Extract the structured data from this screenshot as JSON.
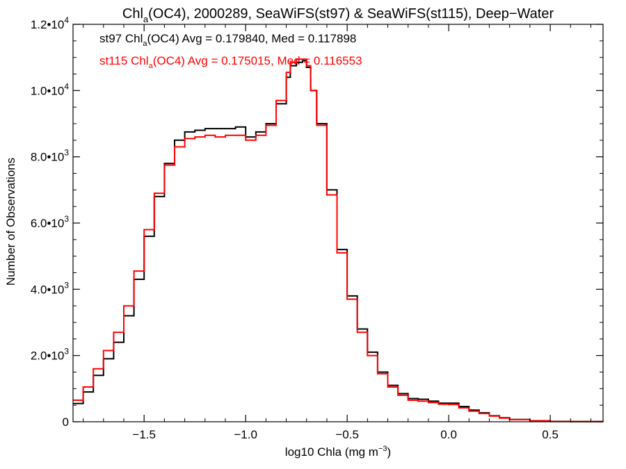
{
  "chart_data": {
    "type": "line",
    "title": {
      "pre": "Chl",
      "sub": "a",
      "post": "(OC4), 2000289, SeaWiFS(st97) & SeaWiFS(st115), Deep−Water"
    },
    "xlabel": {
      "pre": "log10 Chla (mg m",
      "sup": "−3",
      "post": ")"
    },
    "ylabel": "Number of Observations",
    "xlim": [
      -1.85,
      0.76
    ],
    "ylim": [
      0,
      12000
    ],
    "x_ticks": [
      {
        "value": -1.5,
        "label": "−1.5"
      },
      {
        "value": -1.0,
        "label": "−1.0"
      },
      {
        "value": -0.5,
        "label": "−0.5"
      },
      {
        "value": 0.0,
        "label": "0.0"
      },
      {
        "value": 0.5,
        "label": "0.5"
      }
    ],
    "y_ticks": [
      {
        "value": 0,
        "mant": "0",
        "exp": ""
      },
      {
        "value": 2000,
        "mant": "2.0•10",
        "exp": "3"
      },
      {
        "value": 4000,
        "mant": "4.0•10",
        "exp": "3"
      },
      {
        "value": 6000,
        "mant": "6.0•10",
        "exp": "3"
      },
      {
        "value": 8000,
        "mant": "8.0•10",
        "exp": "3"
      },
      {
        "value": 10000,
        "mant": "1.0•10",
        "exp": "4"
      },
      {
        "value": 12000,
        "mant": "1.2•10",
        "exp": "4"
      }
    ],
    "grid": false,
    "legend": "top-left",
    "series": [
      {
        "name": "st97",
        "color": "#000000",
        "label": {
          "pre": "st97 Chl",
          "sub": "a",
          "post": "(OC4) Avg = 0.179840, Med = 0.117898"
        },
        "step": "post",
        "x": [
          -1.85,
          -1.8,
          -1.75,
          -1.7,
          -1.65,
          -1.6,
          -1.55,
          -1.5,
          -1.45,
          -1.4,
          -1.35,
          -1.3,
          -1.25,
          -1.2,
          -1.15,
          -1.1,
          -1.05,
          -1.0,
          -0.95,
          -0.9,
          -0.85,
          -0.8,
          -0.78,
          -0.75,
          -0.72,
          -0.7,
          -0.68,
          -0.65,
          -0.6,
          -0.55,
          -0.5,
          -0.45,
          -0.4,
          -0.35,
          -0.3,
          -0.25,
          -0.2,
          -0.15,
          -0.1,
          -0.05,
          0.0,
          0.05,
          0.1,
          0.15,
          0.2,
          0.25,
          0.3,
          0.4,
          0.5,
          0.6,
          0.76
        ],
        "y": [
          550,
          900,
          1400,
          1900,
          2400,
          3200,
          4300,
          5600,
          6800,
          7800,
          8500,
          8750,
          8800,
          8850,
          8850,
          8850,
          8900,
          8600,
          8750,
          9000,
          9600,
          10400,
          10750,
          10850,
          10900,
          10700,
          10000,
          9000,
          7000,
          5200,
          3800,
          2800,
          2100,
          1500,
          1100,
          850,
          700,
          680,
          620,
          560,
          560,
          460,
          350,
          270,
          180,
          120,
          70,
          30,
          10,
          5,
          0
        ]
      },
      {
        "name": "st115",
        "color": "#ff0000",
        "label": {
          "pre": "st115 Chl",
          "sub": "a",
          "post": "(OC4) Avg = 0.175015, Med = 0.116553"
        },
        "step": "post",
        "x": [
          -1.85,
          -1.8,
          -1.75,
          -1.7,
          -1.65,
          -1.6,
          -1.55,
          -1.5,
          -1.45,
          -1.4,
          -1.35,
          -1.3,
          -1.25,
          -1.2,
          -1.15,
          -1.1,
          -1.05,
          -1.0,
          -0.95,
          -0.9,
          -0.85,
          -0.8,
          -0.78,
          -0.75,
          -0.72,
          -0.7,
          -0.68,
          -0.65,
          -0.6,
          -0.55,
          -0.5,
          -0.45,
          -0.4,
          -0.35,
          -0.3,
          -0.25,
          -0.2,
          -0.15,
          -0.1,
          -0.05,
          0.0,
          0.05,
          0.1,
          0.15,
          0.2,
          0.25,
          0.3,
          0.4,
          0.5,
          0.6,
          0.76
        ],
        "y": [
          650,
          1050,
          1600,
          2150,
          2700,
          3500,
          4550,
          5800,
          6900,
          7750,
          8300,
          8550,
          8600,
          8650,
          8600,
          8650,
          8650,
          8500,
          8650,
          8950,
          9700,
          10550,
          10850,
          10950,
          10950,
          10750,
          10000,
          8950,
          6850,
          5100,
          3700,
          2700,
          2000,
          1450,
          1050,
          800,
          650,
          620,
          580,
          530,
          520,
          420,
          320,
          250,
          170,
          110,
          65,
          28,
          9,
          4,
          0
        ]
      }
    ]
  }
}
